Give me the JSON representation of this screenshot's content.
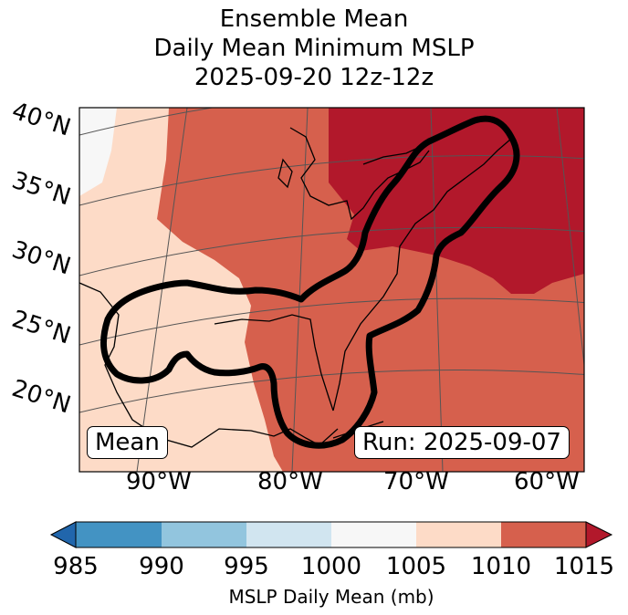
{
  "title": {
    "line1": "Ensemble Mean",
    "line2": "Daily Mean Minimum MSLP",
    "line3": "2025-09-20 12z-12z"
  },
  "map": {
    "lat_labels": [
      "40°N",
      "35°N",
      "30°N",
      "25°N",
      "20°N"
    ],
    "lon_labels": [
      "90°W",
      "80°W",
      "70°W",
      "60°W"
    ],
    "mean_label": "Mean",
    "run_label": "Run: 2025-09-07"
  },
  "colorbar": {
    "label": "MSLP Daily Mean (mb)",
    "ticks": [
      "985",
      "990",
      "995",
      "1000",
      "1005",
      "1010",
      "1015"
    ],
    "colors": {
      "below": "#2166ac",
      "985-990": "#4393c3",
      "990-995": "#92c5de",
      "995-1000": "#d1e5f0",
      "1000-1005": "#f7f7f7",
      "1005-1010": "#fddbc7",
      "1010-1015": "#d6604d",
      "above": "#b2182b"
    }
  }
}
